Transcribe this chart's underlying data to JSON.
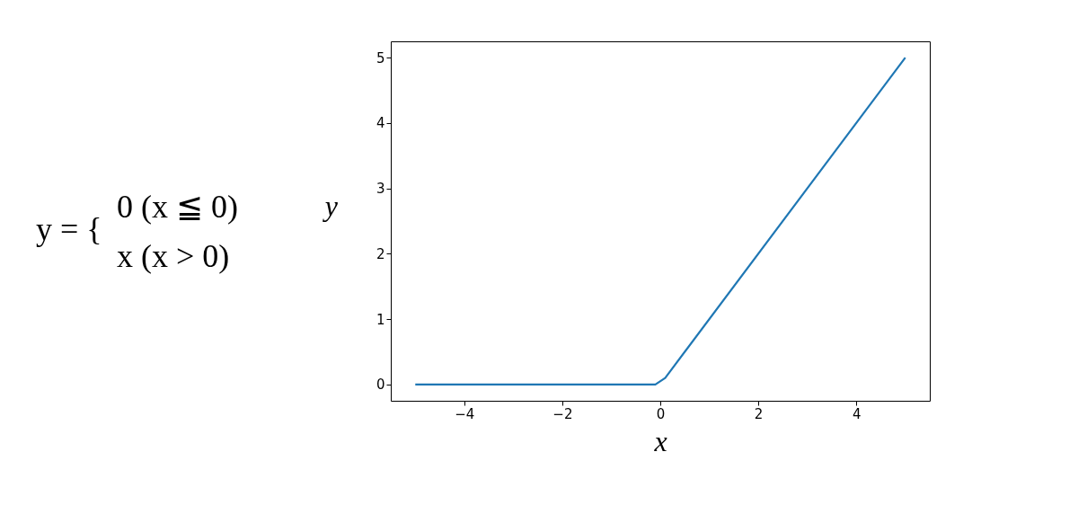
{
  "chart_data": {
    "type": "line",
    "xlabel": "x",
    "ylabel": "y",
    "annotations": [
      "y = {",
      "0   (x ≦ 0)",
      "x   (x > 0)"
    ],
    "x": [
      -5,
      -0.1,
      0.1,
      5
    ],
    "series": [
      {
        "color": "#1f77b4",
        "values": [
          0,
          0,
          0.1,
          5
        ]
      }
    ],
    "xlim": [
      -5.5,
      5.5
    ],
    "xticks": [
      {
        "value": -4,
        "label": "−4"
      },
      {
        "value": -2,
        "label": "−2"
      },
      0,
      2,
      4
    ],
    "ylim": [
      -0.25,
      5.25
    ],
    "yticks": [
      0,
      1,
      2,
      3,
      4,
      5
    ],
    "grid": false,
    "marker": "none",
    "line_style": "solid"
  }
}
